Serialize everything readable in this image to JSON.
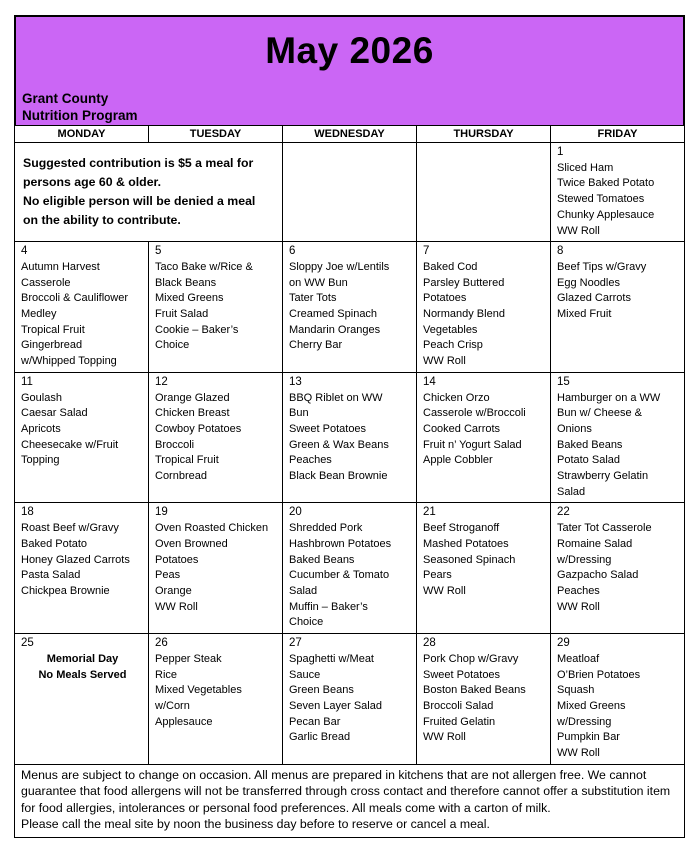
{
  "header": {
    "title": "May 2026",
    "org_line1": "Grant County",
    "org_line2": "Nutrition Program",
    "bg_color": "#cb66f5"
  },
  "calendar": {
    "day_headers": [
      "MONDAY",
      "TUESDAY",
      "WEDNESDAY",
      "THURSDAY",
      "FRIDAY"
    ],
    "weeks": [
      [
        {
          "type": "note",
          "colspan": 2,
          "text": "Suggested contribution is $5 a meal for persons age 60 & older.\nNo eligible person will be denied a meal on the ability to contribute."
        },
        {
          "type": "empty"
        },
        {
          "type": "empty"
        },
        {
          "type": "menu",
          "day": "1",
          "lines": [
            "Sliced Ham",
            "Twice Baked Potato",
            "Stewed Tomatoes",
            "Chunky Applesauce",
            "WW Roll"
          ]
        }
      ],
      [
        {
          "type": "menu",
          "day": "4",
          "lines": [
            "Autumn Harvest",
            "Casserole",
            "Broccoli & Cauliflower",
            "Medley",
            "Tropical Fruit",
            "Gingerbread",
            "w/Whipped Topping"
          ]
        },
        {
          "type": "menu",
          "day": "5",
          "lines": [
            "Taco Bake w/Rice &",
            "Black Beans",
            "Mixed Greens",
            "Fruit Salad",
            "Cookie – Baker’s",
            "Choice"
          ]
        },
        {
          "type": "menu",
          "day": "6",
          "lines": [
            "Sloppy Joe w/Lentils",
            "on WW Bun",
            "Tater Tots",
            "Creamed Spinach",
            "Mandarin Oranges",
            "Cherry Bar"
          ]
        },
        {
          "type": "menu",
          "day": "7",
          "lines": [
            "Baked Cod",
            "Parsley Buttered",
            "Potatoes",
            "Normandy Blend",
            "Vegetables",
            "Peach Crisp",
            "WW Roll"
          ]
        },
        {
          "type": "menu",
          "day": "8",
          "lines": [
            "Beef Tips w/Gravy",
            "Egg Noodles",
            "Glazed Carrots",
            "Mixed Fruit"
          ]
        }
      ],
      [
        {
          "type": "menu",
          "day": "11",
          "lines": [
            "Goulash",
            "Caesar Salad",
            "Apricots",
            "Cheesecake w/Fruit",
            "Topping"
          ]
        },
        {
          "type": "menu",
          "day": "12",
          "lines": [
            "Orange Glazed",
            "Chicken Breast",
            "Cowboy Potatoes",
            "Broccoli",
            "Tropical Fruit",
            "Cornbread"
          ]
        },
        {
          "type": "menu",
          "day": "13",
          "lines": [
            "BBQ Riblet on WW",
            "Bun",
            "Sweet Potatoes",
            "Green & Wax Beans",
            "Peaches",
            "Black Bean Brownie"
          ]
        },
        {
          "type": "menu",
          "day": "14",
          "lines": [
            "Chicken Orzo",
            "Casserole w/Broccoli",
            "Cooked Carrots",
            "Fruit n’ Yogurt Salad",
            "Apple Cobbler"
          ]
        },
        {
          "type": "menu",
          "day": "15",
          "lines": [
            "Hamburger on a WW",
            "Bun w/ Cheese &",
            "Onions",
            "Baked Beans",
            "Potato Salad",
            "Strawberry Gelatin",
            "Salad"
          ]
        }
      ],
      [
        {
          "type": "menu",
          "day": "18",
          "lines": [
            "Roast Beef w/Gravy",
            "Baked Potato",
            "Honey Glazed Carrots",
            "Pasta Salad",
            "Chickpea Brownie"
          ]
        },
        {
          "type": "menu",
          "day": "19",
          "lines": [
            "Oven Roasted Chicken",
            "Oven Browned",
            "Potatoes",
            "Peas",
            "Orange",
            "WW Roll"
          ]
        },
        {
          "type": "menu",
          "day": "20",
          "lines": [
            "Shredded Pork",
            "Hashbrown Potatoes",
            "Baked Beans",
            "Cucumber & Tomato",
            "Salad",
            "Muffin – Baker’s",
            "Choice"
          ]
        },
        {
          "type": "menu",
          "day": "21",
          "lines": [
            "Beef Stroganoff",
            "Mashed Potatoes",
            "Seasoned Spinach",
            "Pears",
            "WW Roll"
          ]
        },
        {
          "type": "menu",
          "day": "22",
          "lines": [
            "Tater Tot Casserole",
            "Romaine Salad",
            "w/Dressing",
            "Gazpacho Salad",
            "Peaches",
            "WW Roll"
          ]
        }
      ],
      [
        {
          "type": "holiday",
          "day": "25",
          "lines": [
            "Memorial Day",
            "No Meals Served"
          ]
        },
        {
          "type": "menu",
          "day": "26",
          "lines": [
            "Pepper Steak",
            "Rice",
            "Mixed Vegetables",
            "w/Corn",
            "Applesauce"
          ]
        },
        {
          "type": "menu",
          "day": "27",
          "lines": [
            "Spaghetti w/Meat",
            "Sauce",
            "Green Beans",
            "Seven Layer Salad",
            "Pecan Bar",
            "Garlic Bread"
          ]
        },
        {
          "type": "menu",
          "day": "28",
          "lines": [
            "Pork Chop w/Gravy",
            "Sweet Potatoes",
            "Boston Baked Beans",
            "Broccoli Salad",
            "Fruited Gelatin",
            "WW Roll"
          ]
        },
        {
          "type": "menu",
          "day": "29",
          "lines": [
            "Meatloaf",
            "O’Brien Potatoes",
            "Squash",
            "Mixed Greens",
            "w/Dressing",
            "Pumpkin Bar",
            "WW Roll"
          ]
        }
      ]
    ]
  },
  "footer": {
    "paragraph1": "Menus are subject to change on occasion. All menus are prepared in kitchens that are not allergen free. We cannot guarantee that food allergens will not be transferred through cross contact and therefore cannot offer a substitution item for food allergies, intolerances or personal food preferences. All meals come with a carton of milk.",
    "paragraph2": "Please call the meal site by noon the business day before to reserve or cancel a meal."
  }
}
